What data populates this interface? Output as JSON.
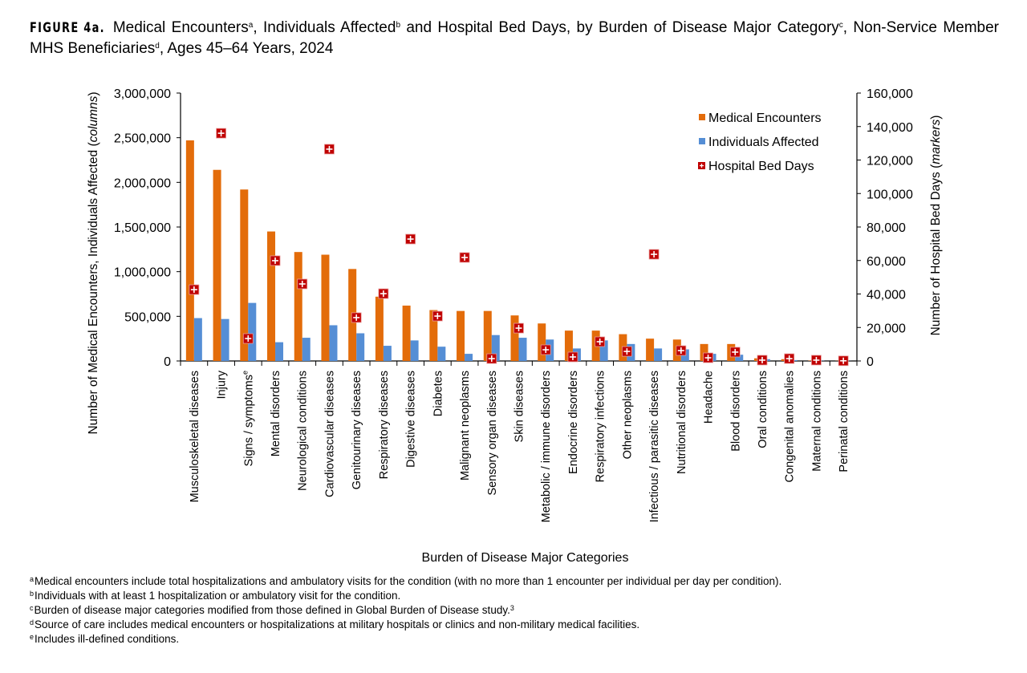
{
  "title": {
    "figure_label": "FIGURE 4a.",
    "parts": [
      "Medical Encounters",
      "a",
      ", Individuals Affected",
      "b",
      " and Hospital Bed Days, by Burden of Disease Major Category",
      "c",
      ", Non-Service Member MHS Beneficiaries",
      "d",
      ", Ages 45–64 Years, 2024"
    ]
  },
  "chart_data": {
    "type": "bar",
    "xlabel": "Burden of Disease Major Categories",
    "ylabel_left": "Number of Medical Encounters, Individuals Affected",
    "ylabel_left_italic": "columns",
    "ylabel_right": "Number of Hospital Bed Days",
    "ylabel_right_italic": "markers",
    "ylim_left": [
      0,
      3000000
    ],
    "yticks_left": [
      "0",
      "500,000",
      "1,000,000",
      "1,500,000",
      "2,000,000",
      "2,500,000",
      "3,000,000"
    ],
    "ylim_right": [
      0,
      160000
    ],
    "yticks_right": [
      "0",
      "20,000",
      "40,000",
      "60,000",
      "80,000",
      "100,000",
      "120,000",
      "140,000",
      "160,000"
    ],
    "grid": false,
    "legend_position": "top-right",
    "categories": [
      "Musculoskeletal diseases",
      "Injury",
      "Signs / symptoms",
      "Mental disorders",
      "Neurological conditions",
      "Cardiovascular diseases",
      "Genitourinary diseases",
      "Respiratory diseases",
      "Digestive diseases",
      "Diabetes",
      "Malignant neoplasms",
      "Sensory organ diseases",
      "Skin diseases",
      "Metabolic / immune disorders",
      "Endocrine disorders",
      "Respiratory infections",
      "Other neoplasms",
      "Infectious / parasitic diseases",
      "Nutritional disorders",
      "Headache",
      "Blood disorders",
      "Oral conditions",
      "Congenital anomalies",
      "Maternal conditions",
      "Perinatal conditions"
    ],
    "category_superscripts": {
      "Signs / symptoms": "e"
    },
    "series": [
      {
        "name": "Medical Encounters",
        "type": "bar",
        "axis": "left",
        "color": "#E36C0A",
        "values": [
          2470000,
          2140000,
          1920000,
          1450000,
          1220000,
          1190000,
          1030000,
          720000,
          620000,
          570000,
          560000,
          560000,
          510000,
          420000,
          340000,
          340000,
          300000,
          250000,
          240000,
          190000,
          190000,
          30000,
          20000,
          5000,
          2000
        ]
      },
      {
        "name": "Individuals Affected",
        "type": "bar",
        "axis": "left",
        "color": "#558ED5",
        "values": [
          480000,
          470000,
          650000,
          210000,
          260000,
          400000,
          310000,
          170000,
          230000,
          160000,
          80000,
          290000,
          260000,
          240000,
          140000,
          230000,
          190000,
          140000,
          130000,
          80000,
          70000,
          20000,
          10000,
          3000,
          1000
        ]
      },
      {
        "name": "Hospital Bed Days",
        "type": "marker",
        "axis": "right",
        "color": "#C00000",
        "values": [
          42600,
          136000,
          13400,
          59900,
          46000,
          126500,
          25900,
          40200,
          72800,
          26800,
          61800,
          1400,
          19600,
          6700,
          2400,
          11500,
          5700,
          63700,
          6200,
          1900,
          5300,
          500,
          1400,
          500,
          100
        ]
      }
    ]
  },
  "footnotes": [
    {
      "mark": "a",
      "text": "Medical encounters include total hospitalizations and ambulatory visits for the condition (with no more than 1 encounter per individual per day per condition)."
    },
    {
      "mark": "b",
      "text": "Individuals with at least 1 hospitalization or ambulatory visit for the condition."
    },
    {
      "mark": "c",
      "text": "Burden of disease major categories modified from those defined in Global Burden of Disease study.",
      "ref": "3"
    },
    {
      "mark": "d",
      "text": "Source of care includes medical encounters or hospitalizations at military hospitals or clinics and non-military medical facilities."
    },
    {
      "mark": "e",
      "text": "Includes ill-defined conditions."
    }
  ]
}
